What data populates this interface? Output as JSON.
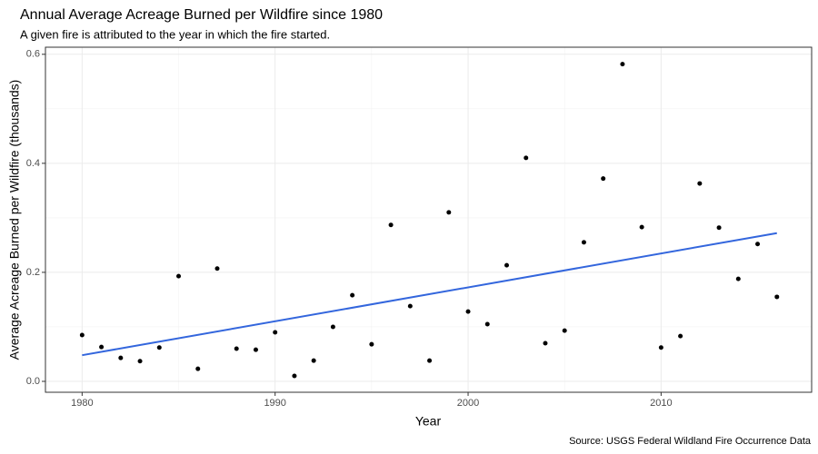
{
  "chart_data": {
    "type": "scatter",
    "title": "Annual Average Acreage Burned per Wildfire since 1980",
    "subtitle": "A given fire is attributed to the year in which the fire started.",
    "x_label": "Year",
    "y_label": "Average Acreage Burned per Wildfire (thousands)",
    "caption": "Source: USGS Federal Wildland Fire Occurrence Data",
    "x": [
      1980,
      1981,
      1982,
      1983,
      1984,
      1985,
      1986,
      1987,
      1988,
      1989,
      1990,
      1991,
      1992,
      1993,
      1994,
      1995,
      1996,
      1997,
      1998,
      1999,
      2000,
      2001,
      2002,
      2003,
      2004,
      2005,
      2006,
      2007,
      2008,
      2009,
      2010,
      2011,
      2012,
      2013,
      2014,
      2015,
      2016
    ],
    "values": [
      0.085,
      0.063,
      0.043,
      0.037,
      0.062,
      0.193,
      0.023,
      0.207,
      0.06,
      0.058,
      0.09,
      0.01,
      0.038,
      0.1,
      0.158,
      0.068,
      0.287,
      0.138,
      0.038,
      0.31,
      0.128,
      0.105,
      0.213,
      0.41,
      0.07,
      0.093,
      0.255,
      0.372,
      0.582,
      0.283,
      0.062,
      0.083,
      0.363,
      0.282,
      0.188,
      0.252,
      0.155
    ],
    "color": "#000000",
    "trend": {
      "x": [
        1980,
        2016
      ],
      "values": [
        0.048,
        0.272
      ],
      "color": "#3366dd"
    },
    "xlim": [
      1978.1,
      2017.8
    ],
    "ylim": [
      -0.02,
      0.613
    ],
    "xticks": [
      1980,
      1990,
      2000,
      2010
    ],
    "yticks": [
      {
        "value": 0,
        "label": "0.0"
      },
      0.2,
      0.4,
      0.6
    ],
    "grid": true
  }
}
